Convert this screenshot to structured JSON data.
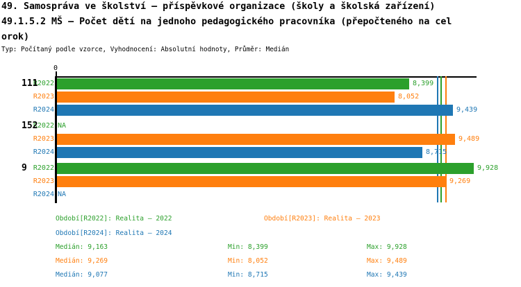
{
  "header": {
    "title_line1": "49. Samospráva ve školství – příspěvkové organizace (školy a školská zařízení)",
    "title_line2": "49.1.5.2 MŠ – Počet dětí na jednoho pedagogického pracovníka (přepočteného na cel",
    "title_line3": "orok)",
    "subtitle": "Typ: Počítaný podle vzorce, Vyhodnocení: Absolutní hodnoty, Průměr: Medián"
  },
  "colors": {
    "green": "#2ca02c",
    "orange": "#ff7f0e",
    "blue": "#1f77b4",
    "axis": "#000000"
  },
  "chart": {
    "zero_label": "0",
    "groups": [
      {
        "label": "111",
        "rows": [
          {
            "period": "R2022",
            "series": "green",
            "value": 8.399,
            "display": "8,399"
          },
          {
            "period": "R2023",
            "series": "orange",
            "value": 8.052,
            "display": "8,052"
          },
          {
            "period": "R2024",
            "series": "blue",
            "value": 9.439,
            "display": "9,439"
          }
        ]
      },
      {
        "label": "152",
        "rows": [
          {
            "period": "R2022",
            "series": "green",
            "value": null,
            "display": "NA"
          },
          {
            "period": "R2023",
            "series": "orange",
            "value": 9.489,
            "display": "9,489"
          },
          {
            "period": "R2024",
            "series": "blue",
            "value": 8.715,
            "display": "8,715"
          }
        ]
      },
      {
        "label": "9",
        "rows": [
          {
            "period": "R2022",
            "series": "green",
            "value": 9.928,
            "display": "9,928"
          },
          {
            "period": "R2023",
            "series": "orange",
            "value": 9.269,
            "display": "9,269"
          },
          {
            "period": "R2024",
            "series": "blue",
            "value": null,
            "display": "NA"
          }
        ]
      }
    ],
    "median_lines": [
      {
        "series": "blue",
        "value": 9.077
      },
      {
        "series": "green",
        "value": 9.163
      },
      {
        "series": "orange",
        "value": 9.269
      }
    ]
  },
  "chart_data": {
    "type": "bar",
    "orientation": "horizontal",
    "title": "49.1.5.2 MŠ – Počet dětí na jednoho pedagogického pracovníka (přepočteného na celorok)",
    "categories": [
      "111",
      "152",
      "9"
    ],
    "series": [
      {
        "name": "Realita – 2022",
        "period": "R2022",
        "color": "#2ca02c",
        "values": [
          8.399,
          null,
          9.928
        ]
      },
      {
        "name": "Realita – 2023",
        "period": "R2023",
        "color": "#ff7f0e",
        "values": [
          8.052,
          9.489,
          9.269
        ]
      },
      {
        "name": "Realita – 2024",
        "period": "R2024",
        "color": "#1f77b4",
        "values": [
          9.439,
          8.715,
          null
        ]
      }
    ],
    "medians": {
      "R2022": 9.163,
      "R2023": 9.269,
      "R2024": 9.077
    },
    "min": {
      "R2022": 8.399,
      "R2023": 8.052,
      "R2024": 8.715
    },
    "max": {
      "R2022": 9.928,
      "R2023": 9.489,
      "R2024": 9.439
    },
    "xlim": [
      0,
      10
    ],
    "grid": false,
    "value_labels": true,
    "na_label": "NA"
  },
  "legend": {
    "items": [
      {
        "series": "green",
        "label": "Období[R2022]: Realita – 2022"
      },
      {
        "series": "orange",
        "label": "Období[R2023]: Realita – 2023"
      },
      {
        "series": "blue",
        "label": "Období[R2024]: Realita – 2024"
      }
    ]
  },
  "stats": {
    "rows": [
      {
        "series": "green",
        "median": "Medián: 9,163",
        "min": "Min: 8,399",
        "max": "Max: 9,928"
      },
      {
        "series": "orange",
        "median": "Medián: 9,269",
        "min": "Min: 8,052",
        "max": "Max: 9,489"
      },
      {
        "series": "blue",
        "median": "Medián: 9,077",
        "min": "Min: 8,715",
        "max": "Max: 9,439"
      }
    ]
  }
}
